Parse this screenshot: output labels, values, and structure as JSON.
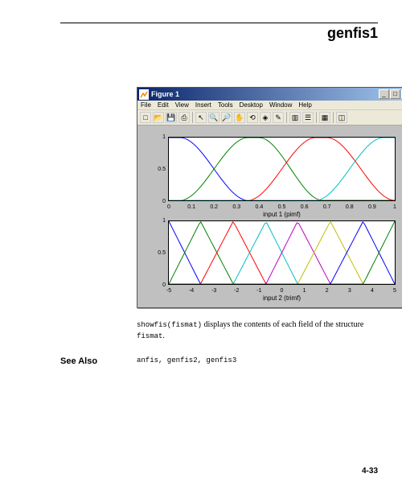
{
  "header": {
    "title": "genfis1"
  },
  "window": {
    "title": "Figure 1",
    "menus": [
      "File",
      "Edit",
      "View",
      "Insert",
      "Tools",
      "Desktop",
      "Window",
      "Help"
    ],
    "toolbar_icons": [
      "new",
      "open",
      "save",
      "print",
      "sep",
      "arrow",
      "zoom-in",
      "zoom-out",
      "pan",
      "rotate",
      "data-cursor",
      "brush",
      "sep",
      "colorbar",
      "legend",
      "sep",
      "tile",
      "sep",
      "axes"
    ]
  },
  "plots": [
    {
      "xlabel": "input 1 (pimf)",
      "xlim": [
        0,
        1
      ],
      "ylim": [
        0,
        1
      ],
      "xticks": [
        0,
        0.1,
        0.2,
        0.3,
        0.4,
        0.5,
        0.6,
        0.7,
        0.8,
        0.9,
        1
      ],
      "yticks": [
        0,
        0.5,
        1
      ],
      "yticklabels": [
        "0",
        "0.5",
        "1"
      ],
      "background": "#ffffff",
      "border_color": "#000000",
      "curves": [
        {
          "color": "#0000ff",
          "type": "pimf",
          "params": [
            -0.35,
            -0.05,
            0.05,
            0.35
          ]
        },
        {
          "color": "#008000",
          "type": "pimf",
          "params": [
            0.05,
            0.35,
            0.4,
            0.68
          ]
        },
        {
          "color": "#ff0000",
          "type": "pimf",
          "params": [
            0.35,
            0.65,
            0.7,
            1.0
          ]
        },
        {
          "color": "#00bfbf",
          "type": "pimf",
          "params": [
            0.65,
            0.95,
            1.05,
            1.35
          ]
        }
      ]
    },
    {
      "xlabel": "input 2 (trimf)",
      "xlim": [
        -5,
        5
      ],
      "ylim": [
        0,
        1
      ],
      "xticks": [
        -5,
        -4,
        -3,
        -2,
        -1,
        0,
        1,
        2,
        3,
        4,
        5
      ],
      "yticks": [
        0,
        0.5,
        1
      ],
      "yticklabels": [
        "0",
        "0.5",
        "1"
      ],
      "background": "#ffffff",
      "border_color": "#000000",
      "curves": [
        {
          "color": "#0000ff",
          "type": "trimf",
          "params": [
            -6.4,
            -5,
            -3.6
          ]
        },
        {
          "color": "#008000",
          "type": "trimf",
          "params": [
            -5,
            -3.6,
            -2.15
          ]
        },
        {
          "color": "#ff0000",
          "type": "trimf",
          "params": [
            -3.6,
            -2.15,
            -0.7
          ]
        },
        {
          "color": "#00bfbf",
          "type": "trimf",
          "params": [
            -2.15,
            -0.7,
            0.7
          ]
        },
        {
          "color": "#bf00bf",
          "type": "trimf",
          "params": [
            -0.7,
            0.7,
            2.15
          ]
        },
        {
          "color": "#bfbf00",
          "type": "trimf",
          "params": [
            0.7,
            2.15,
            3.6
          ]
        },
        {
          "color": "#0000ff",
          "type": "trimf",
          "params": [
            2.15,
            3.6,
            5
          ]
        },
        {
          "color": "#008000",
          "type": "trimf",
          "params": [
            3.6,
            5,
            6.4
          ]
        }
      ]
    }
  ],
  "body": {
    "code1": "showfis(fismat)",
    "text1": " displays the contents of each field of the structure ",
    "code2": "fismat",
    "text2": "."
  },
  "see_also": {
    "label": "See Also",
    "items": "anfis, genfis2, genfis3"
  },
  "page_number": "4-33",
  "colors": {
    "win_bg": "#ece9d8",
    "plot_bg": "#c0c0c0",
    "titlebar_start": "#0a246a",
    "titlebar_end": "#a6caf0"
  }
}
